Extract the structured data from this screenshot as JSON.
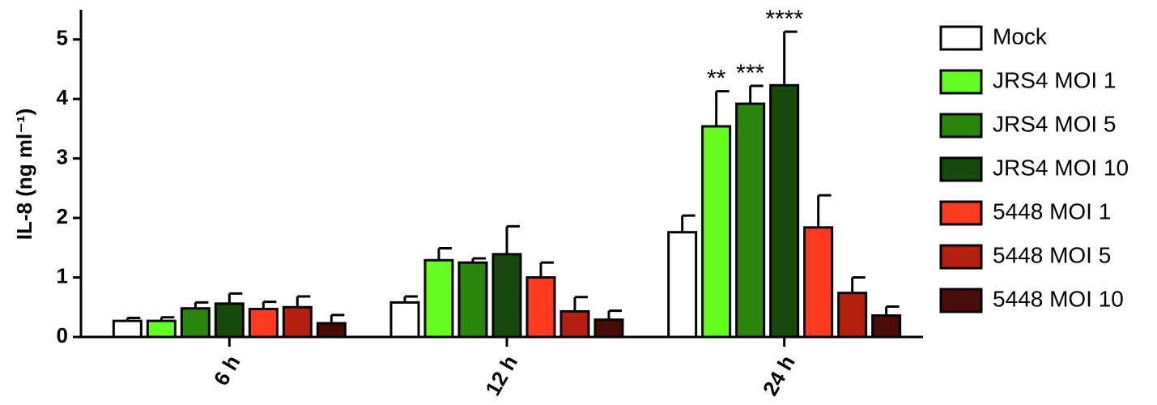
{
  "chart_data": {
    "type": "bar",
    "y_label": "IL-8 (ng ml⁻¹)",
    "categories": [
      "6 h",
      "12 h",
      "24 h"
    ],
    "ylim": [
      0,
      5.5
    ],
    "yticks": [
      0,
      1,
      2,
      3,
      4,
      5
    ],
    "legend": "right",
    "series": [
      {
        "name": "Mock",
        "color": "#ffffff",
        "values": [
          0.27,
          0.58,
          1.76
        ],
        "errors": [
          0.05,
          0.1,
          0.28
        ]
      },
      {
        "name": "JRS4 MOI 1",
        "color": "#66ff22",
        "values": [
          0.27,
          1.29,
          3.54
        ],
        "errors": [
          0.06,
          0.2,
          0.59
        ],
        "annotations": [
          null,
          null,
          "**"
        ]
      },
      {
        "name": "JRS4 MOI 5",
        "color": "#2a860c",
        "values": [
          0.48,
          1.25,
          3.92
        ],
        "errors": [
          0.1,
          0.07,
          0.3
        ],
        "annotations": [
          null,
          null,
          "***"
        ]
      },
      {
        "name": "JRS4 MOI 10",
        "color": "#174a0c",
        "values": [
          0.56,
          1.39,
          4.23
        ],
        "errors": [
          0.17,
          0.47,
          0.9
        ],
        "annotations": [
          null,
          null,
          "****"
        ]
      },
      {
        "name": "5448 MOI 1",
        "color": "#ff3a1e",
        "values": [
          0.47,
          1.0,
          1.84
        ],
        "errors": [
          0.12,
          0.25,
          0.54
        ]
      },
      {
        "name": "5448 MOI 5",
        "color": "#b3200f",
        "values": [
          0.5,
          0.43,
          0.74
        ],
        "errors": [
          0.18,
          0.24,
          0.26
        ]
      },
      {
        "name": "5448 MOI 10",
        "color": "#4a0c08",
        "values": [
          0.23,
          0.29,
          0.36
        ],
        "errors": [
          0.14,
          0.15,
          0.15
        ]
      }
    ]
  }
}
